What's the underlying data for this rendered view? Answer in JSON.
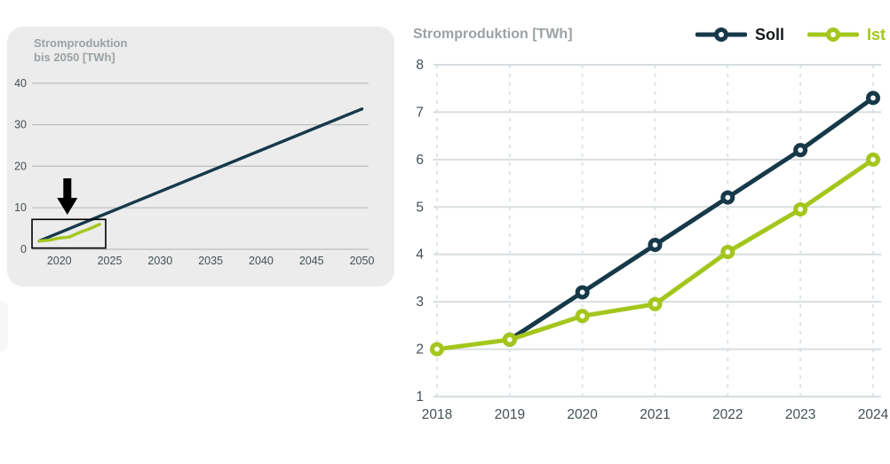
{
  "colors": {
    "soll": "#16394a",
    "ist": "#a4c61c",
    "title_gray": "#9ba1a4",
    "tick_text": "#454f54",
    "card_background": "#ececec",
    "grid_left": "#b9bdbf",
    "grid_solid": "#d7dde0",
    "grid_dashed": "#dbe1e4",
    "legend_text": [
      "#15191b",
      "#a4c61c"
    ],
    "annotation_black": "#000000"
  },
  "chart_data": [
    {
      "type": "line",
      "title": "Stromproduktion bis 2050 [TWh]",
      "title_lines": [
        "Stromproduktion",
        "bis 2050 [TWh]"
      ],
      "xlabel": "",
      "ylabel": "",
      "xlim": [
        2018,
        2050
      ],
      "ylim": [
        0,
        40
      ],
      "x_ticks": [
        2020,
        2025,
        2030,
        2035,
        2040,
        2045,
        2050
      ],
      "y_ticks": [
        0,
        10,
        20,
        30,
        40
      ],
      "grid": "horizontal",
      "legend_position": "none",
      "series": [
        {
          "name": "Soll",
          "color": "#16394a",
          "x": [
            2018,
            2050
          ],
          "values": [
            2.0,
            33.8
          ],
          "markers": false
        },
        {
          "name": "Ist",
          "color": "#a4c61c",
          "x": [
            2018,
            2019,
            2020,
            2021,
            2022,
            2023,
            2024
          ],
          "values": [
            2.0,
            2.2,
            2.7,
            2.95,
            4.05,
            4.95,
            6.0
          ],
          "markers": false
        }
      ],
      "annotations": {
        "color": "#000000",
        "highlight_box": {
          "x0": 2017.3,
          "x1": 2024.6,
          "y0": 0.3,
          "y1": 7.2
        },
        "arrow": {
          "x": 2020.8,
          "direction": "down",
          "points_to": "highlight_box"
        }
      }
    },
    {
      "type": "line",
      "title": "Stromproduktion [TWh]",
      "xlabel": "",
      "ylabel": "",
      "x": [
        2018,
        2019,
        2020,
        2021,
        2022,
        2023,
        2024
      ],
      "xlim": [
        2018,
        2024
      ],
      "ylim": [
        1,
        8
      ],
      "y_ticks": [
        1,
        2,
        3,
        4,
        5,
        6,
        7,
        8
      ],
      "grid": "horizontal solid, vertical dashed",
      "legend_position": "top-right",
      "series": [
        {
          "name": "Soll",
          "color": "#16394a",
          "values": [
            null,
            2.2,
            3.2,
            4.2,
            5.2,
            6.2,
            7.3
          ],
          "markers": true
        },
        {
          "name": "Ist",
          "color": "#a4c61c",
          "values": [
            2.0,
            2.2,
            2.7,
            2.95,
            4.05,
            4.95,
            6.0
          ],
          "markers": true
        }
      ]
    }
  ]
}
